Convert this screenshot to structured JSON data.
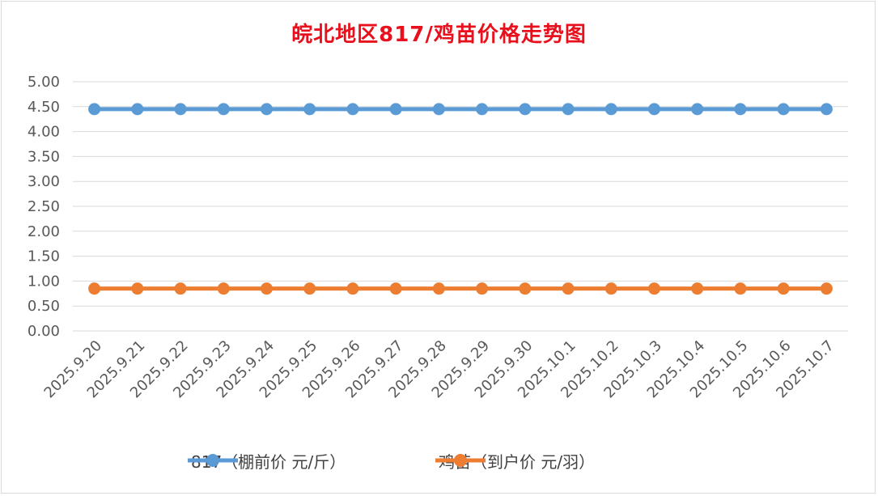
{
  "chart_data": {
    "type": "line",
    "title": "皖北地区817/鸡苗价格走势图",
    "categories": [
      "2025.9.20",
      "2025.9.21",
      "2025.9.22",
      "2025.9.23",
      "2025.9.24",
      "2025.9.25",
      "2025.9.26",
      "2025.9.27",
      "2025.9.28",
      "2025.9.29",
      "2025.9.30",
      "2025.10.1",
      "2025.10.2",
      "2025.10.3",
      "2025.10.4",
      "2025.10.5",
      "2025.10.6",
      "2025.10.7"
    ],
    "y_ticks": [
      "0.00",
      "0.50",
      "1.00",
      "1.50",
      "2.00",
      "2.50",
      "3.00",
      "3.50",
      "4.00",
      "4.50",
      "5.00"
    ],
    "ylim": [
      0,
      5
    ],
    "grid": true,
    "legend_position": "bottom",
    "series": [
      {
        "name": "817（棚前价 元/斤）",
        "color": "#5b9bd5",
        "values": [
          4.45,
          4.45,
          4.45,
          4.45,
          4.45,
          4.45,
          4.45,
          4.45,
          4.45,
          4.45,
          4.45,
          4.45,
          4.45,
          4.45,
          4.45,
          4.45,
          4.45,
          4.45
        ]
      },
      {
        "name": "鸡苗（到户价 元/羽）",
        "color": "#ed7d31",
        "values": [
          0.85,
          0.85,
          0.85,
          0.85,
          0.85,
          0.85,
          0.85,
          0.85,
          0.85,
          0.85,
          0.85,
          0.85,
          0.85,
          0.85,
          0.85,
          0.85,
          0.85,
          0.85
        ]
      }
    ]
  }
}
